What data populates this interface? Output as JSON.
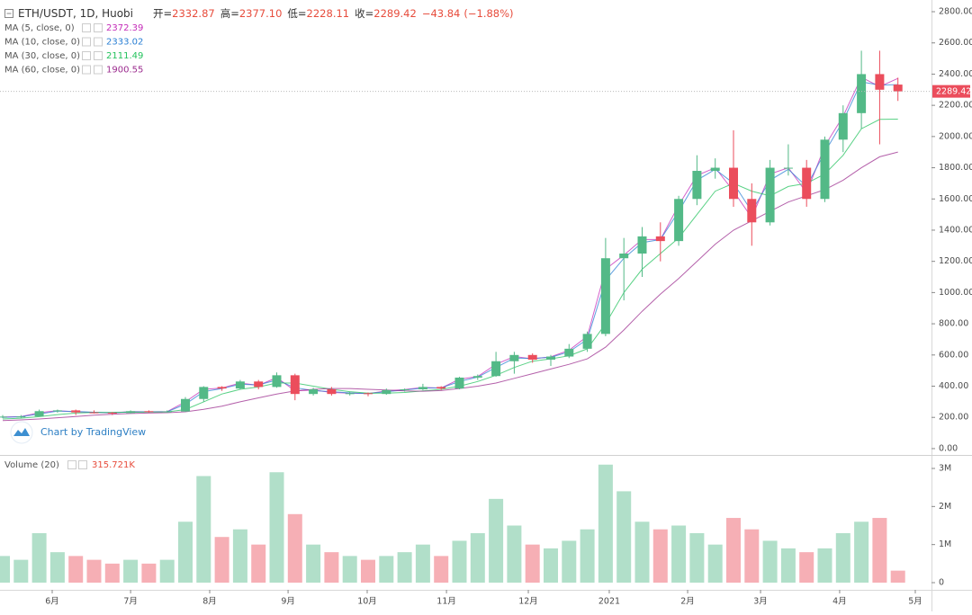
{
  "chart_data": [
    {
      "type": "candlestick",
      "title": "ETH/USDT, 1D, Huobi",
      "ohlc_legend": [
        {
          "name": "开=",
          "value": 2332.87,
          "label": "2332.87"
        },
        {
          "name": "高=",
          "value": 2377.1,
          "label": "2377.10"
        },
        {
          "name": "低=",
          "value": 2228.11,
          "label": "2228.11"
        },
        {
          "name": "收=",
          "value": 2289.42,
          "label": "2289.42"
        }
      ],
      "change": {
        "value": -43.84,
        "label": "−43.84"
      },
      "change_pct": {
        "value": -1.88,
        "label": "(−1.88%)"
      },
      "watermark": "Chart by TradingView",
      "last_price": {
        "value": 2289.42,
        "label": "2289.42"
      },
      "categories": [
        null,
        null,
        null,
        null,
        null,
        null,
        null,
        null,
        null,
        null,
        null,
        null,
        null,
        null,
        null,
        null,
        null,
        null,
        null,
        null,
        null,
        null,
        null,
        null,
        null,
        null,
        null,
        null,
        null,
        null,
        null,
        null,
        null,
        null,
        null,
        null,
        null,
        null,
        null,
        null,
        null,
        null,
        null,
        null,
        null,
        null,
        null,
        null,
        null,
        null
      ],
      "open": [
        200,
        205,
        206,
        240,
        245,
        232,
        230,
        228,
        240,
        235,
        238,
        318,
        395,
        385,
        430,
        395,
        470,
        350,
        380,
        350,
        355,
        350,
        375,
        380,
        395,
        385,
        455,
        465,
        560,
        600,
        570,
        590,
        640,
        735,
        1220,
        1250,
        1360,
        1330,
        1600,
        1780,
        1800,
        1600,
        1450,
        1800,
        1800,
        1600,
        1980,
        2150,
        2400,
        2332.87
      ],
      "high": [
        215,
        215,
        250,
        250,
        250,
        245,
        235,
        245,
        245,
        245,
        330,
        400,
        400,
        440,
        440,
        488,
        480,
        390,
        395,
        365,
        360,
        385,
        385,
        415,
        400,
        460,
        475,
        620,
        620,
        610,
        600,
        670,
        750,
        1350,
        1350,
        1420,
        1450,
        1620,
        1880,
        1860,
        2040,
        1700,
        1850,
        1950,
        1850,
        2000,
        2200,
        2550,
        2550,
        2377.1
      ],
      "low": [
        195,
        195,
        205,
        230,
        215,
        225,
        215,
        225,
        230,
        230,
        235,
        300,
        370,
        380,
        380,
        390,
        310,
        340,
        340,
        340,
        335,
        345,
        365,
        375,
        375,
        380,
        440,
        460,
        480,
        550,
        530,
        580,
        620,
        720,
        950,
        1100,
        1200,
        1300,
        1560,
        1730,
        1550,
        1300,
        1430,
        1750,
        1550,
        1580,
        1900,
        2050,
        1950,
        2228.11
      ],
      "close": [
        205,
        206,
        240,
        245,
        232,
        230,
        228,
        240,
        235,
        238,
        318,
        395,
        385,
        430,
        395,
        470,
        350,
        380,
        350,
        355,
        350,
        375,
        380,
        395,
        385,
        455,
        465,
        560,
        600,
        570,
        590,
        640,
        735,
        1220,
        1250,
        1360,
        1330,
        1600,
        1780,
        1800,
        1600,
        1450,
        1800,
        1800,
        1600,
        1980,
        2150,
        2400,
        2300,
        2289.42
      ],
      "up_color": "#53b987",
      "down_color": "#eb4d5c",
      "series": [
        {
          "name": "MA (5, close, 0)",
          "color": "#c42bb8",
          "values": [
            203,
            205,
            230,
            243,
            236,
            231,
            229,
            237,
            236,
            237,
            300,
            380,
            388,
            420,
            405,
            455,
            370,
            375,
            360,
            355,
            352,
            370,
            378,
            392,
            388,
            445,
            462,
            540,
            590,
            575,
            588,
            630,
            720,
            1150,
            1240,
            1340,
            1340,
            1560,
            1750,
            1800,
            1650,
            1480,
            1760,
            1800,
            1640,
            1940,
            2130,
            2380,
            2320,
            2372.39
          ]
        },
        {
          "name": "MA (10, close, 0)",
          "color": "#2a7fd4",
          "values": [
            200,
            204,
            222,
            240,
            238,
            233,
            230,
            235,
            236,
            236,
            285,
            365,
            385,
            412,
            408,
            440,
            390,
            372,
            365,
            357,
            353,
            365,
            375,
            388,
            389,
            430,
            458,
            520,
            580,
            578,
            585,
            620,
            700,
            1080,
            1220,
            1320,
            1340,
            1520,
            1720,
            1790,
            1700,
            1520,
            1720,
            1790,
            1680,
            1900,
            2100,
            2350,
            2330,
            2333.02
          ]
        },
        {
          "name": "MA (30, close, 0)",
          "color": "#22c25c",
          "values": [
            190,
            195,
            205,
            218,
            228,
            232,
            232,
            233,
            234,
            235,
            250,
            300,
            350,
            380,
            395,
            420,
            420,
            400,
            380,
            365,
            355,
            355,
            360,
            370,
            380,
            400,
            430,
            470,
            520,
            560,
            575,
            595,
            640,
            800,
            1000,
            1150,
            1250,
            1350,
            1500,
            1650,
            1700,
            1650,
            1620,
            1680,
            1700,
            1760,
            1880,
            2050,
            2110,
            2111.49
          ]
        },
        {
          "name": "MA (60, close, 0)",
          "color": "#9b2b8e",
          "values": [
            180,
            184,
            190,
            198,
            206,
            214,
            220,
            225,
            228,
            230,
            236,
            252,
            272,
            300,
            325,
            350,
            370,
            380,
            385,
            385,
            380,
            375,
            370,
            368,
            372,
            385,
            400,
            420,
            450,
            480,
            510,
            540,
            575,
            650,
            760,
            880,
            990,
            1090,
            1200,
            1310,
            1400,
            1460,
            1520,
            1580,
            1620,
            1660,
            1720,
            1800,
            1870,
            1900.55
          ]
        }
      ],
      "ylim": [
        -35,
        2875
      ],
      "yticks": [
        {
          "value": 0,
          "label": "0.00"
        },
        {
          "value": 200,
          "label": "200.00"
        },
        {
          "value": 400,
          "label": "400.00"
        },
        {
          "value": 600,
          "label": "600.00"
        },
        {
          "value": 800,
          "label": "800.00"
        },
        {
          "value": 1000,
          "label": "1000.00"
        },
        {
          "value": 1200,
          "label": "1200.00"
        },
        {
          "value": 1400,
          "label": "1400.00"
        },
        {
          "value": 1600,
          "label": "1600.00"
        },
        {
          "value": 1800,
          "label": "1800.00"
        },
        {
          "value": 2000,
          "label": "2000.00"
        },
        {
          "value": 2200,
          "label": "2200.00"
        },
        {
          "value": 2400,
          "label": "2400.00"
        },
        {
          "value": 2600,
          "label": "2600.00"
        },
        {
          "value": 2800,
          "label": "2800.00"
        }
      ]
    },
    {
      "type": "bar",
      "title": "Volume (20)",
      "last_value_label": "315.721K",
      "values": [
        700000,
        600000,
        1300000,
        800000,
        700000,
        600000,
        500000,
        600000,
        500000,
        600000,
        1600000,
        2800000,
        1200000,
        1400000,
        1000000,
        2900000,
        1800000,
        1000000,
        800000,
        700000,
        600000,
        700000,
        800000,
        1000000,
        700000,
        1100000,
        1300000,
        2200000,
        1500000,
        1000000,
        900000,
        1100000,
        1400000,
        3100000,
        2400000,
        1600000,
        1400000,
        1500000,
        1300000,
        1000000,
        1700000,
        1400000,
        1100000,
        900000,
        800000,
        900000,
        1300000,
        1600000,
        1700000,
        315721
      ],
      "ylim": [
        -165000,
        3307000
      ],
      "yticks": [
        {
          "value": 0,
          "label": "0"
        },
        {
          "value": 1000000,
          "label": "1M"
        },
        {
          "value": 2000000,
          "label": "2M"
        },
        {
          "value": 3000000,
          "label": "3M"
        }
      ],
      "xticks": [
        {
          "value": 2.71,
          "label": "6月"
        },
        {
          "value": 7.0,
          "label": "7月"
        },
        {
          "value": 11.33,
          "label": "8月"
        },
        {
          "value": 15.62,
          "label": "9月"
        },
        {
          "value": 19.95,
          "label": "10月"
        },
        {
          "value": 24.29,
          "label": "11月"
        },
        {
          "value": 28.77,
          "label": "12月"
        },
        {
          "value": 33.2,
          "label": "2021"
        },
        {
          "value": 37.49,
          "label": "2月"
        },
        {
          "value": 41.48,
          "label": "3月"
        },
        {
          "value": 45.81,
          "label": "4月"
        },
        {
          "value": 49.95,
          "label": "5月"
        }
      ]
    }
  ]
}
